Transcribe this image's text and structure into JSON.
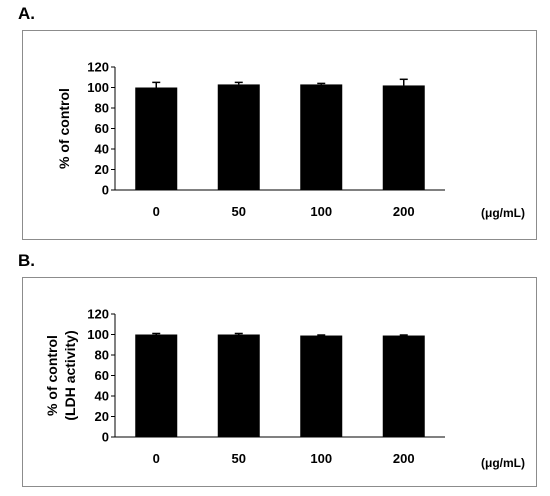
{
  "panels": [
    {
      "label": "A."
    },
    {
      "label": "B."
    }
  ],
  "chart_data": [
    {
      "type": "bar",
      "categories": [
        "0",
        "50",
        "100",
        "200"
      ],
      "values": [
        100,
        103,
        103,
        102
      ],
      "errors": [
        5,
        2,
        1,
        6
      ],
      "ylabel": [
        "% of control"
      ],
      "xunit": "(μg/mL)",
      "ylim": [
        0,
        120
      ],
      "yticks": [
        0,
        20,
        40,
        60,
        80,
        100,
        120
      ],
      "grid": false,
      "bar_color": "#000000"
    },
    {
      "type": "bar",
      "categories": [
        "0",
        "50",
        "100",
        "200"
      ],
      "values": [
        100,
        100,
        99,
        99
      ],
      "errors": [
        1,
        1,
        0.5,
        0.5
      ],
      "ylabel": [
        "% of control",
        "(LDH activity)"
      ],
      "xunit": "(μg/mL)",
      "ylim": [
        0,
        120
      ],
      "yticks": [
        0,
        20,
        40,
        60,
        80,
        100,
        120
      ],
      "grid": false,
      "bar_color": "#000000"
    }
  ]
}
